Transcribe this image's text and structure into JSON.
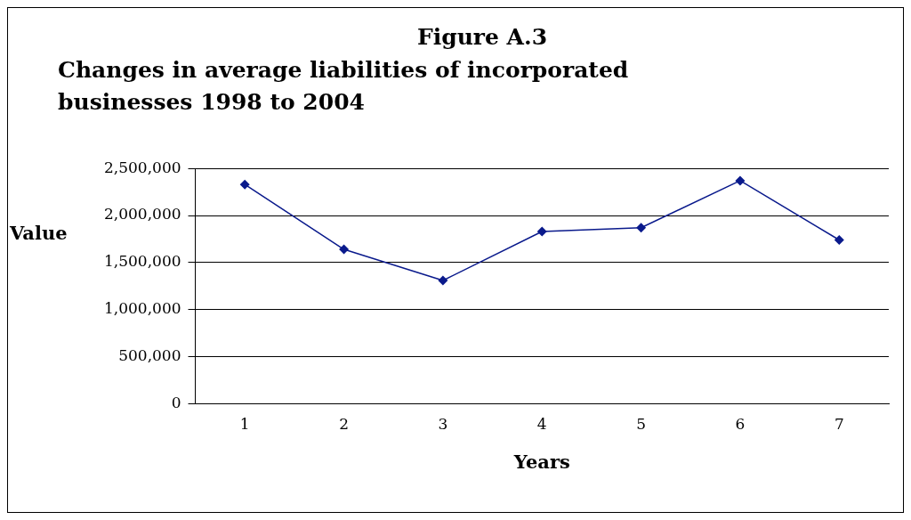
{
  "chart_data": {
    "type": "line",
    "title": "Figure A.3",
    "subtitle": "Changes in average liabilities of incorporated businesses 1998 to 2004",
    "xlabel": "Years",
    "ylabel": "Value",
    "categories": [
      "1",
      "2",
      "3",
      "4",
      "5",
      "6",
      "7"
    ],
    "series": [
      {
        "color": "#0a1a8c",
        "values": [
          2330000,
          1640000,
          1310000,
          1830000,
          1870000,
          2370000,
          1740000
        ]
      }
    ],
    "ylim": [
      0,
      2500000
    ],
    "yticks": [
      0,
      {
        "value": 500000,
        "label": "500,000"
      },
      {
        "value": 1000000,
        "label": "1,000,000"
      },
      {
        "value": 1500000,
        "label": "1,500,000"
      },
      {
        "value": 2000000,
        "label": "2,000,000"
      },
      {
        "value": 2500000,
        "label": "2,500,000"
      }
    ],
    "grid": "y",
    "legend": false,
    "marker": "diamond",
    "line_style": "solid"
  }
}
